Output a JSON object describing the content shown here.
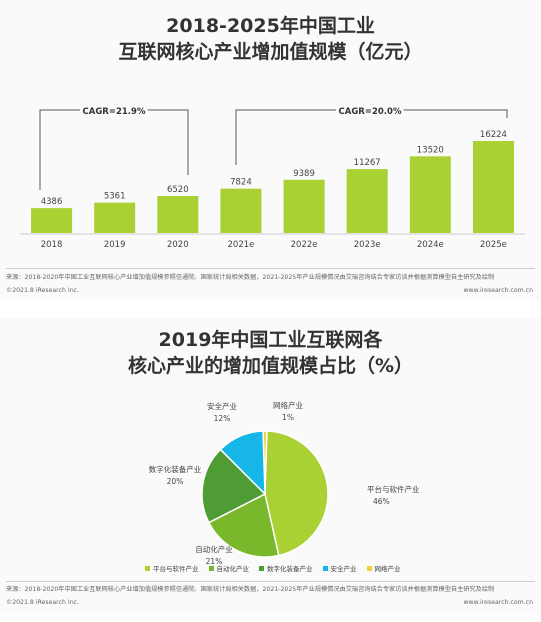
{
  "chart_data": [
    {
      "type": "bar",
      "title_line1": "2018-2025年中国工业",
      "title_line2": "互联网核心产业增加值规模（亿元）",
      "categories": [
        "2018",
        "2019",
        "2020",
        "2021e",
        "2022e",
        "2023e",
        "2024e",
        "2025e"
      ],
      "values": [
        4386,
        5361,
        6520,
        7824,
        9389,
        11267,
        13520,
        16224
      ],
      "color": "#a9d134",
      "annotations": [
        "CAGR=21.9%",
        "CAGR=20.0%"
      ],
      "footnote": "来源：2018-2020年中国工业互联网核心产业增加值规模参照信通院、国家统计局相关数据，2021-2025年产业规模情况由艾瑞咨询结合专家访谈并根据测算模型自主研究及绘制",
      "copyright": "©2021.8 iResearch Inc.",
      "website": "www.iresearch.com.cn"
    },
    {
      "type": "pie",
      "title_line1": "2019年中国工业互联网各",
      "title_line2": "核心产业的增加值规模占比（%）",
      "slices": [
        {
          "label": "平台与软件产业",
          "value": 46,
          "value_label": "46%",
          "color": "#a9d134"
        },
        {
          "label": "自动化产业",
          "value": 21,
          "value_label": "21%",
          "color": "#79b72b"
        },
        {
          "label": "数字化装备产业",
          "value": 20,
          "value_label": "20%",
          "color": "#4f9c35"
        },
        {
          "label": "安全产业",
          "value": 12,
          "value_label": "12%",
          "color": "#17b6e8"
        },
        {
          "label": "网络产业",
          "value": 1,
          "value_label": "1%",
          "color": "#f3cf3c"
        }
      ],
      "footnote": "来源：2018-2020年中国工业互联网核心产业增加值规模参照信通院、国家统计局相关数据，2021-2025年产业规模情况由艾瑞咨询结合专家访谈并根据测算模型自主研究及绘制",
      "copyright": "©2021.8 iResearch Inc.",
      "website": "www.iresearch.com.cn"
    }
  ]
}
